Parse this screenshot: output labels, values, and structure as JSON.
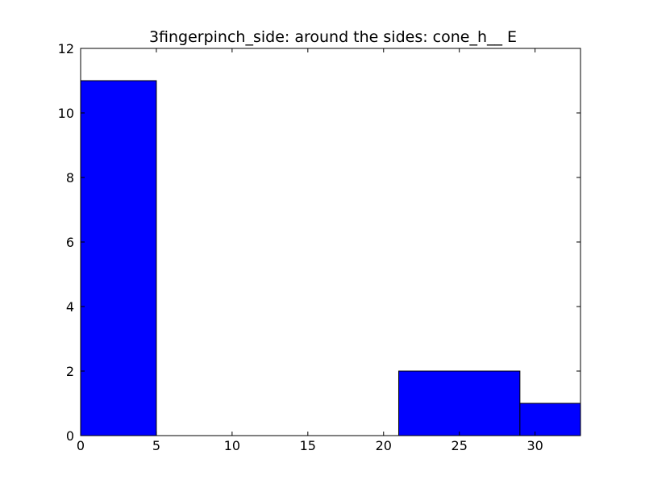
{
  "chart_data": {
    "type": "bar",
    "title": "3fingerpinch_side: around the sides: cone_h__ E",
    "xlabel": "",
    "ylabel": "",
    "bins": [
      {
        "x0": 0,
        "x1": 5,
        "value": 11
      },
      {
        "x0": 5,
        "x1": 21,
        "value": 0
      },
      {
        "x0": 21,
        "x1": 29,
        "value": 2
      },
      {
        "x0": 29,
        "x1": 33,
        "value": 1
      }
    ],
    "xlim": [
      0,
      33
    ],
    "ylim": [
      0,
      12
    ],
    "xticks": [
      0,
      5,
      10,
      15,
      20,
      25,
      30
    ],
    "yticks": [
      0,
      2,
      4,
      6,
      8,
      10,
      12
    ],
    "grid": false,
    "bar_color": "#0000ff",
    "edge_color": "#000000"
  }
}
